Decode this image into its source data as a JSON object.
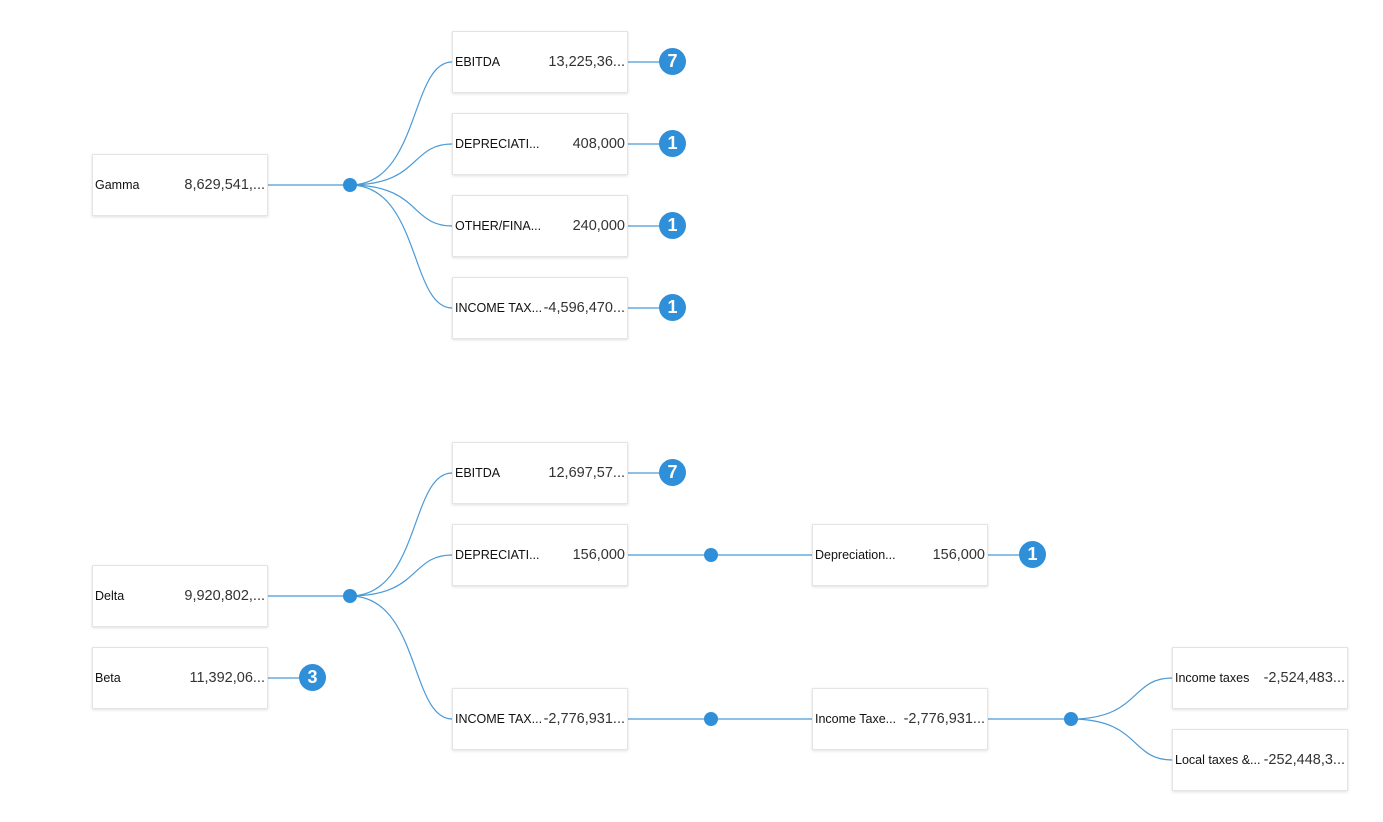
{
  "nodes": {
    "gamma": {
      "label": "Gamma",
      "value": "8,629,541,..."
    },
    "g_ebitda": {
      "label": "EBITDA",
      "value": "13,225,36..."
    },
    "g_depr": {
      "label": "DEPRECIATI...",
      "value": "408,000"
    },
    "g_other": {
      "label": "OTHER/FINA...",
      "value": "240,000"
    },
    "g_tax": {
      "label": "INCOME TAX...",
      "value": "-4,596,470..."
    },
    "delta": {
      "label": "Delta",
      "value": "9,920,802,..."
    },
    "beta": {
      "label": "Beta",
      "value": "11,392,06..."
    },
    "d_ebitda": {
      "label": "EBITDA",
      "value": "12,697,57..."
    },
    "d_depr": {
      "label": "DEPRECIATI...",
      "value": "156,000"
    },
    "d_tax": {
      "label": "INCOME TAX...",
      "value": "-2,776,931..."
    },
    "d_depr2": {
      "label": "Depreciation...",
      "value": "156,000"
    },
    "d_tax2": {
      "label": "Income Taxe...",
      "value": "-2,776,931..."
    },
    "d_inctax": {
      "label": "Income taxes",
      "value": "-2,524,483..."
    },
    "d_local": {
      "label": "Local taxes &...",
      "value": "-252,448,3..."
    }
  },
  "badges": {
    "g_ebitda": "7",
    "g_depr": "1",
    "g_other": "1",
    "g_tax": "1",
    "beta": "3",
    "d_ebitda": "7",
    "d_depr2": "1"
  },
  "colors": {
    "accent": "#2f8fd8",
    "link": "#4a9ad8"
  }
}
